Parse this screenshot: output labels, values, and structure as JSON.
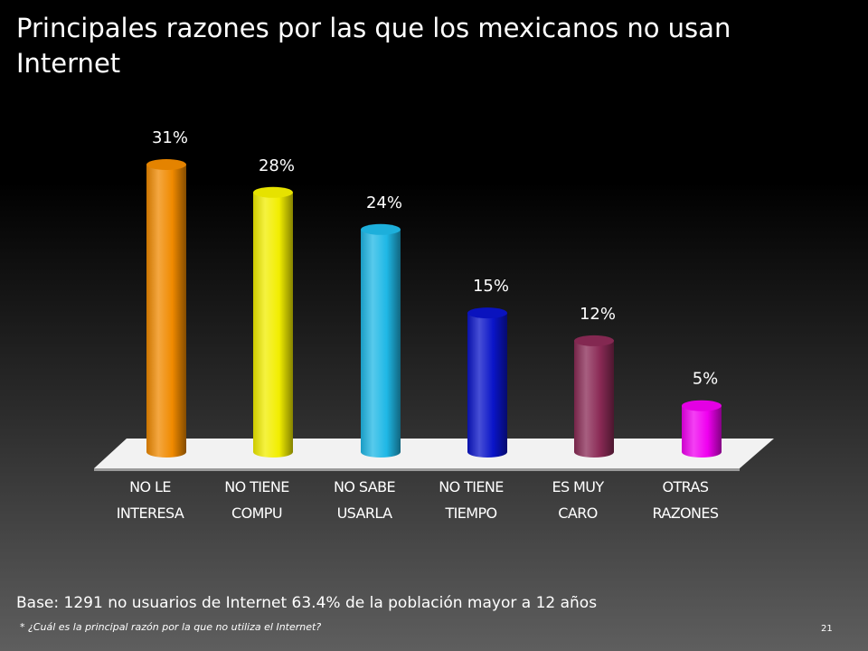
{
  "slide": {
    "title": "Principales razones por las que los mexicanos no usan Internet",
    "base_note": "Base: 1291 no usuarios de Internet 63.4% de la población mayor a 12 años",
    "footnote": "* ¿Cuál es la principal razón por la que no utiliza el Internet?",
    "page_number": "21"
  },
  "chart_data": {
    "type": "bar",
    "categories": [
      [
        "NO LE",
        "INTERESA"
      ],
      [
        "NO TIENE",
        "COMPU"
      ],
      [
        "NO SABE",
        "USARLA"
      ],
      [
        "NO TIENE",
        "TIEMPO"
      ],
      [
        "ES MUY",
        "CARO"
      ],
      [
        "OTRAS",
        "RAZONES"
      ]
    ],
    "values": [
      31,
      28,
      24,
      15,
      12,
      5
    ],
    "data_labels": [
      "31%",
      "28%",
      "24%",
      "15%",
      "12%",
      "5%"
    ],
    "colors": [
      "#f08a00",
      "#f2ee00",
      "#1fb8e6",
      "#0a14c8",
      "#8a2a55",
      "#f000f0"
    ],
    "ylim": [
      0,
      31
    ],
    "grid": false,
    "style": "3d-cylinder"
  }
}
